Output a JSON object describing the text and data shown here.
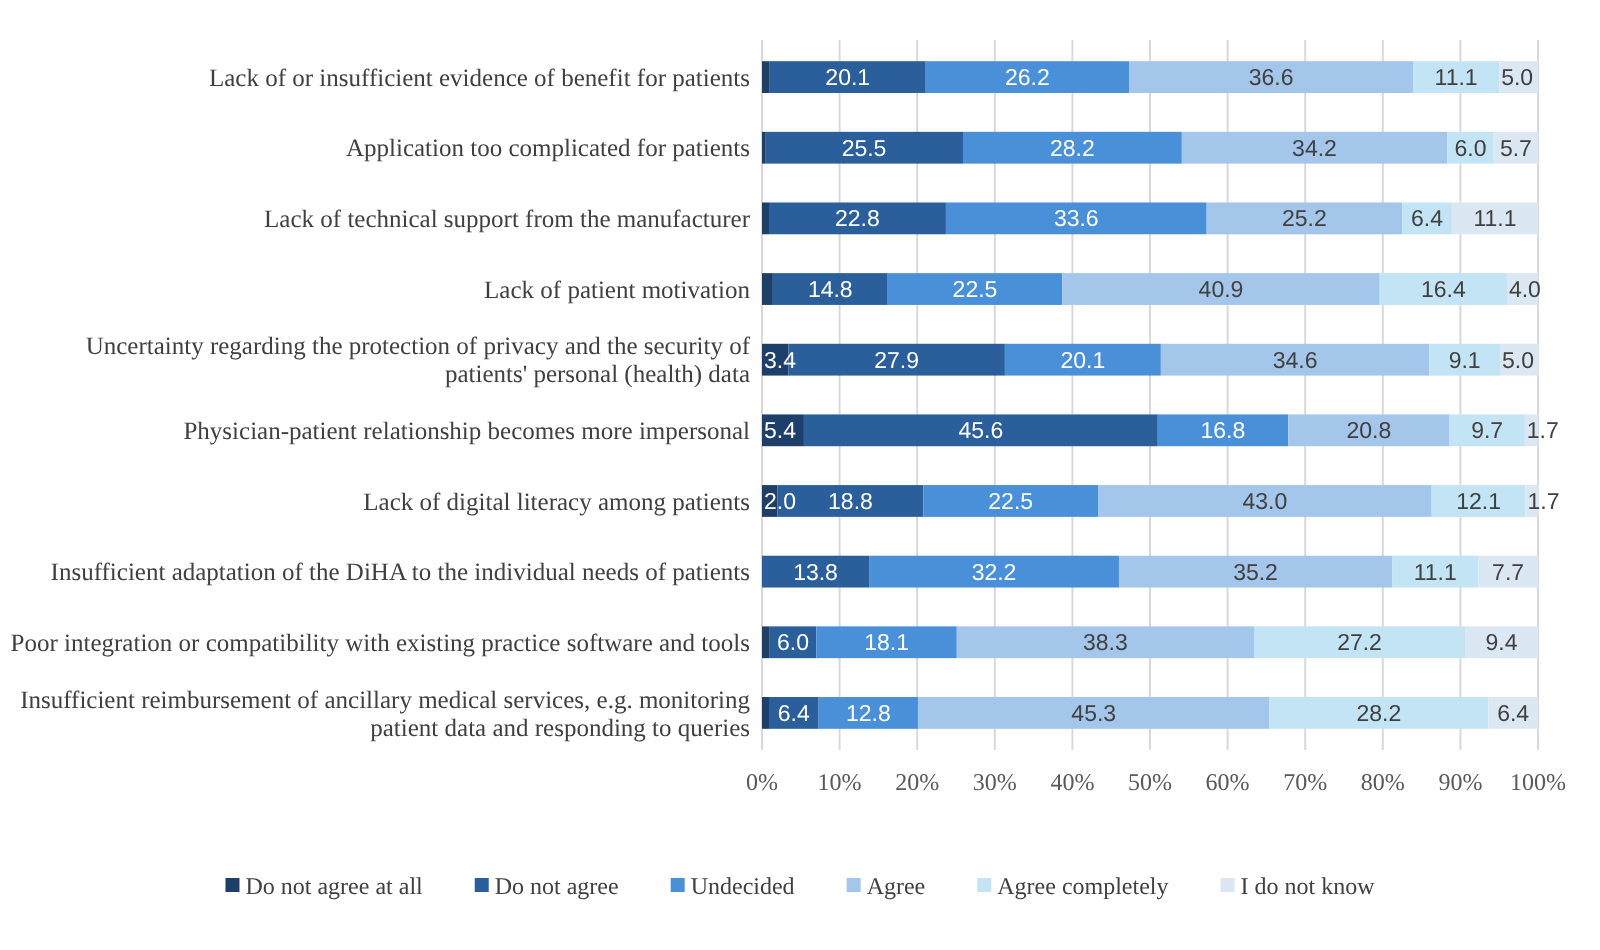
{
  "chart_data": {
    "type": "bar",
    "orientation": "horizontal",
    "stacked": true,
    "categories": [
      "Lack of or insufficient evidence of benefit for patients",
      "Application too complicated for patients",
      "Lack of technical support from the manufacturer",
      "Lack of patient motivation",
      "Uncertainty regarding the protection of privacy and the security of patients' personal (health) data",
      "Physician-patient relationship becomes more impersonal",
      "Lack of digital literacy among patients",
      "Insufficient adaptation of the DiHA to the individual needs of patients",
      "Poor integration or compatibility with existing practice software and tools",
      "Insufficient reimbursement of ancillary medical services, e.g. monitoring patient data and responding to queries"
    ],
    "series": [
      {
        "name": "Do not agree at all",
        "color": "#1f3f6b",
        "values": [
          1.0,
          0.4,
          0.9,
          1.4,
          3.4,
          5.4,
          2.0,
          0,
          1.0,
          0.9
        ],
        "value_labels": [
          null,
          null,
          null,
          null,
          "3.4",
          "5.4",
          "2.0",
          null,
          null,
          null
        ]
      },
      {
        "name": "Do not agree",
        "color": "#2b5f9c",
        "values": [
          20.1,
          25.5,
          22.8,
          14.8,
          27.9,
          45.6,
          18.8,
          13.8,
          6.0,
          6.4
        ],
        "value_labels": [
          "20.1",
          "25.5",
          "22.8",
          "14.8",
          "27.9",
          "45.6",
          "18.8",
          "13.8",
          "6.0",
          "6.4"
        ]
      },
      {
        "name": "Undecided",
        "color": "#4a90d9",
        "values": [
          26.2,
          28.2,
          33.6,
          22.5,
          20.1,
          16.8,
          22.5,
          32.2,
          18.1,
          12.8
        ],
        "value_labels": [
          "26.2",
          "28.2",
          "33.6",
          "22.5",
          "20.1",
          "16.8",
          "22.5",
          "32.2",
          "18.1",
          "12.8"
        ]
      },
      {
        "name": "Agree",
        "color": "#a3c6ea",
        "values": [
          36.6,
          34.2,
          25.2,
          40.9,
          34.6,
          20.8,
          43.0,
          35.2,
          38.3,
          45.3
        ],
        "value_labels": [
          "36.6",
          "34.2",
          "25.2",
          "40.9",
          "34.6",
          "20.8",
          "43.0",
          "35.2",
          "38.3",
          "45.3"
        ]
      },
      {
        "name": "Agree completely",
        "color": "#c3e4f5",
        "values": [
          11.1,
          6.0,
          6.4,
          16.4,
          9.1,
          9.7,
          12.1,
          11.1,
          27.2,
          28.2
        ],
        "value_labels": [
          "11.1",
          "6.0",
          "6.4",
          "16.4",
          "9.1",
          "9.7",
          "12.1",
          "11.1",
          "27.2",
          "28.2"
        ]
      },
      {
        "name": "I do not know",
        "color": "#dce7f4",
        "values": [
          5.0,
          5.7,
          11.1,
          4.0,
          5.0,
          1.7,
          1.7,
          7.7,
          9.4,
          6.4
        ],
        "value_labels": [
          "5.0",
          "5.7",
          "11.1",
          "4.0",
          "5.0",
          "1.7",
          "1.7",
          "7.7",
          "9.4",
          "6.4"
        ]
      }
    ],
    "xlim": [
      0,
      100
    ],
    "xticks": [
      {
        "value": 0,
        "label": "0%"
      },
      {
        "value": 10,
        "label": "10%"
      },
      {
        "value": 20,
        "label": "20%"
      },
      {
        "value": 30,
        "label": "30%"
      },
      {
        "value": 40,
        "label": "40%"
      },
      {
        "value": 50,
        "label": "50%"
      },
      {
        "value": 60,
        "label": "60%"
      },
      {
        "value": 70,
        "label": "70%"
      },
      {
        "value": 80,
        "label": "80%"
      },
      {
        "value": 90,
        "label": "90%"
      },
      {
        "value": 100,
        "label": "100%"
      }
    ],
    "grid": "x",
    "legend": "bottom"
  }
}
